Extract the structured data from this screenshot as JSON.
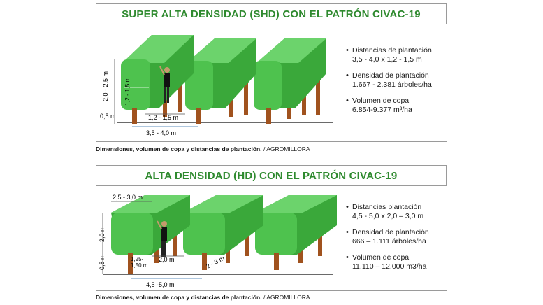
{
  "shd": {
    "title": "SUPER ALTA DENSIDAD (SHD) CON EL PATRÓN CIVAC-19",
    "dims": {
      "height": "2,0 - 2,5 m",
      "trunk": "0,5 m",
      "width": "1,2 - 1,5 m",
      "spacing_tree": "1,2 - 1,5 m",
      "spacing_row": "3,5 - 4,0 m"
    },
    "bullets": [
      {
        "label": "Distancias de plantación",
        "value": "3,5 - 4,0 x 1,2 - 1,5 m"
      },
      {
        "label": "Densidad de plantación",
        "value": "1.667 - 2.381 árboles/ha"
      },
      {
        "label": "Volumen de copa",
        "value": "6.854-9.377 m³/ha"
      }
    ],
    "caption_bold": "Dimensiones, volumen de copa y distancias de plantación.",
    "caption_source": " / AGROMILLORA"
  },
  "hd": {
    "title": "ALTA DENSIDAD (HD) CON EL PATRÓN CIVAC-19",
    "dims": {
      "width_top": "2,5 - 3,0 m",
      "height": "2,0 m",
      "trunk": "0,5 m",
      "gap": "1,25-\n1,50 m",
      "gap_line1": "1,25-",
      "gap_line2": "1,50 m",
      "spacing_tree": "2,0 m",
      "diag": "2 - 3 m",
      "spacing_row": "4,5 -5,0 m"
    },
    "bullets": [
      {
        "label": "Distancias  plantación",
        "value": "4,5 - 5,0 x 2,0 – 3,0 m"
      },
      {
        "label": "Densidad de plantación",
        "value": "666 – 1.111 árboles/ha"
      },
      {
        "label": "Volumen de copa",
        "value": "11.110 – 12.000 m3/ha"
      }
    ],
    "caption_bold": "Dimensiones, volumen de copa y distancias de plantación.",
    "caption_source": " / AGROMILLORA"
  },
  "colors": {
    "title_green": "#2f8a2f",
    "hedge_front": "#4ec24e",
    "hedge_top": "#6cd36c",
    "hedge_side": "#3aa83a",
    "trunk": "#a0521e"
  }
}
